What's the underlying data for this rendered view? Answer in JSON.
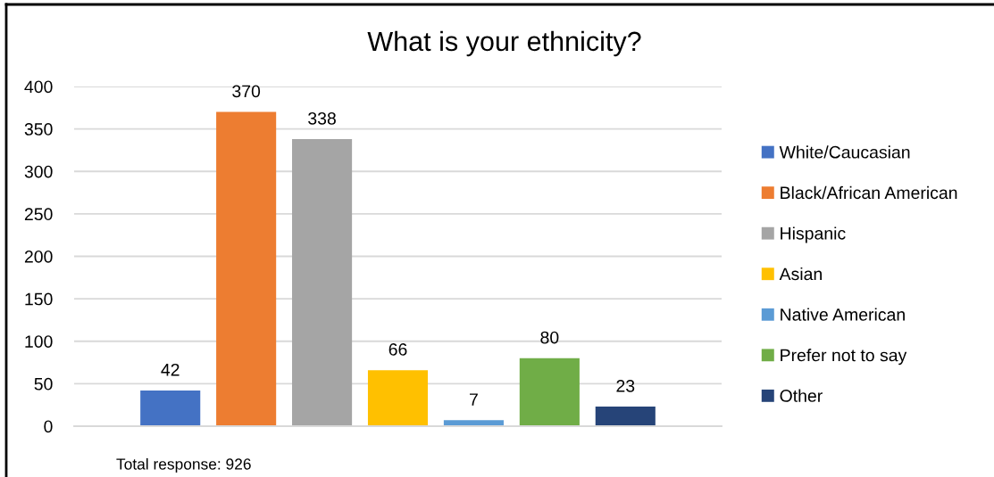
{
  "chart_data": {
    "type": "bar",
    "title": "What is your ethnicity?",
    "categories": [
      null
    ],
    "series": [
      {
        "name": "White/Caucasian",
        "color": "#4472c4",
        "values": [
          42
        ]
      },
      {
        "name": "Black/African American",
        "color": "#ed7d31",
        "values": [
          370
        ]
      },
      {
        "name": "Hispanic",
        "color": "#a5a5a5",
        "values": [
          338
        ]
      },
      {
        "name": "Asian",
        "color": "#ffc000",
        "values": [
          66
        ]
      },
      {
        "name": "Native American",
        "color": "#5b9bd5",
        "values": [
          7
        ]
      },
      {
        "name": "Prefer not to say",
        "color": "#70ad47",
        "values": [
          80
        ]
      },
      {
        "name": "Other",
        "color": "#264478",
        "values": [
          23
        ]
      }
    ],
    "ylim": [
      0,
      400
    ],
    "yticks": [
      0,
      50,
      100,
      150,
      200,
      250,
      300,
      350,
      400
    ],
    "grid": "y",
    "legend": "right",
    "data_labels": true,
    "annotations": [
      "Total response: 926"
    ]
  }
}
